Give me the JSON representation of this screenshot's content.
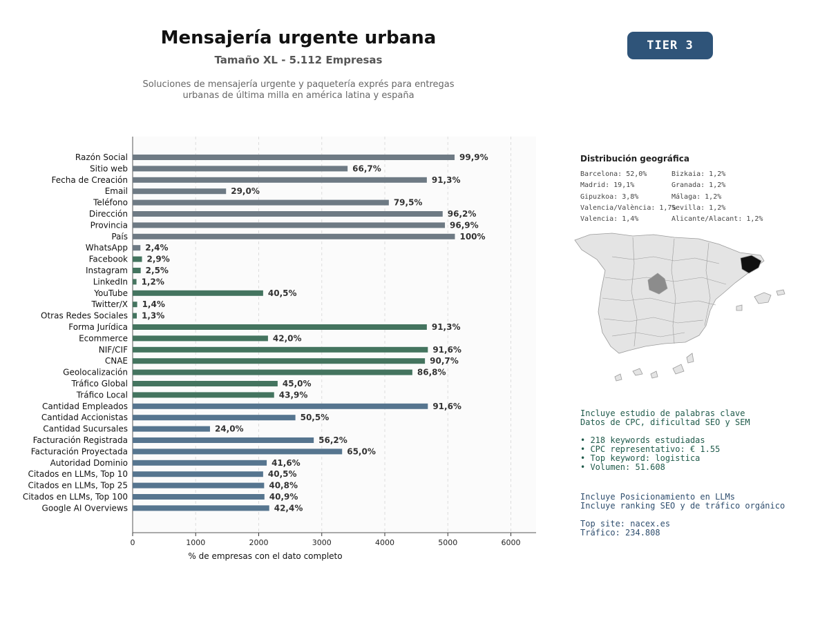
{
  "header": {
    "title": "Mensajería urgente urbana",
    "subtitle": "Tamaño XL - 5.112 Empresas",
    "description_lines": [
      "Soluciones de mensajería urgente y paquetería exprés para entregas",
      "urbanas de última milla en américa latina y españa"
    ],
    "tier": "TIER 3"
  },
  "chart_data": {
    "type": "bar",
    "orientation": "horizontal",
    "xlabel": "% de empresas con el dato completo",
    "xlim": [
      0,
      6400
    ],
    "xticks": [
      0,
      1000,
      2000,
      3000,
      4000,
      5000,
      6000
    ],
    "grid": "x-dashed",
    "colors": {
      "gray": "#6e7a84",
      "green": "#44745f",
      "blue": "#56758f"
    },
    "categories": [
      "Razón Social",
      "Sitio web",
      "Fecha de Creación",
      "Email",
      "Teléfono",
      "Dirección",
      "Provincia",
      "País",
      "WhatsApp",
      "Facebook",
      "Instagram",
      "LinkedIn",
      "YouTube",
      "Twitter/X",
      "Otras Redes Sociales",
      "Forma Jurídica",
      "Ecommerce",
      "NIF/CIF",
      "CNAE",
      "Geolocalización",
      "Tráfico Global",
      "Tráfico Local",
      "Cantidad Empleados",
      "Cantidad Accionistas",
      "Cantidad Sucursales",
      "Facturación Registrada",
      "Facturación Proyectada",
      "Autoridad Dominio",
      "Citados en LLMs, Top 10",
      "Citados en LLMs, Top 25",
      "Citados en LLMs, Top 100",
      "Google AI Overviews"
    ],
    "values": [
      5107,
      3410,
      4667,
      1482,
      4064,
      4918,
      4954,
      5112,
      123,
      148,
      128,
      61,
      2070,
      72,
      66,
      4667,
      2147,
      4683,
      4637,
      4437,
      2300,
      2244,
      4683,
      2582,
      1227,
      2873,
      3323,
      2127,
      2070,
      2086,
      2091,
      2167
    ],
    "labels": [
      "99,9%",
      "66,7%",
      "91,3%",
      "29,0%",
      "79,5%",
      "96,2%",
      "96,9%",
      "100%",
      "2,4%",
      "2,9%",
      "2,5%",
      "1,2%",
      "40,5%",
      "1,4%",
      "1,3%",
      "91,3%",
      "42,0%",
      "91,6%",
      "90,7%",
      "86,8%",
      "45,0%",
      "43,9%",
      "91,6%",
      "50,5%",
      "24,0%",
      "56,2%",
      "65,0%",
      "41,6%",
      "40,5%",
      "40,8%",
      "40,9%",
      "42,4%"
    ],
    "bar_colors": [
      "gray",
      "gray",
      "gray",
      "gray",
      "gray",
      "gray",
      "gray",
      "gray",
      "gray",
      "green",
      "green",
      "green",
      "green",
      "green",
      "green",
      "green",
      "green",
      "green",
      "green",
      "green",
      "green",
      "green",
      "blue",
      "blue",
      "blue",
      "blue",
      "blue",
      "blue",
      "blue",
      "blue",
      "blue",
      "blue"
    ]
  },
  "geo": {
    "title": "Distribución geográfica",
    "left": [
      "Barcelona: 52,0%",
      "Madrid: 19,1%",
      "Gipuzkoa: 3,8%",
      "Valencia/València: 1,7%",
      "Valencia: 1,4%"
    ],
    "right": [
      "Bizkaia: 1,2%",
      "Granada: 1,2%",
      "Málaga: 1,2%",
      "Sevilla: 1,2%",
      "Alicante/Alacant: 1,2%"
    ],
    "map_colors": {
      "base": "#e4e4e4",
      "border": "#9a9a9a",
      "barcelona": "#111111",
      "madrid": "#8c8c8c"
    }
  },
  "keywords": {
    "lines": [
      "Incluye estudio de palabras clave",
      "Datos de CPC, dificultad SEO y SEM",
      "",
      "• 218 keywords estudiadas",
      "• CPC representativo: € 1.55",
      "• Top keyword: logistica",
      "• Volumen: 51.608"
    ]
  },
  "llm": {
    "lines": [
      "Incluye Posicionamiento en LLMs",
      "Incluye ranking SEO y de tráfico orgánico",
      "",
      "Top site: nacex.es",
      "Tráfico: 234.808"
    ]
  }
}
